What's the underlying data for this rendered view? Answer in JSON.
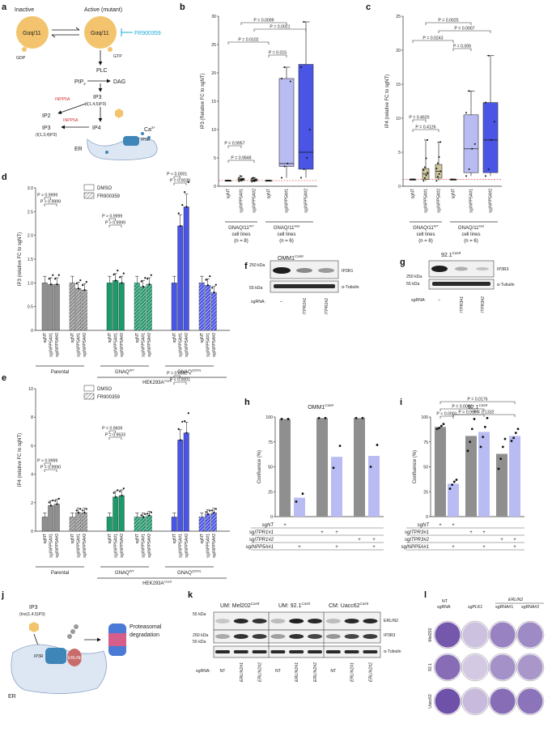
{
  "colors": {
    "grey": "#8f8f8f",
    "green": "#1b9a6a",
    "blue": "#4a55e6",
    "lavender": "#b9bcf2",
    "khaki": "#cfc69a",
    "gold": "#f3c46d",
    "red": "#d32f2f",
    "cyan": "#18a9d8"
  },
  "panel_a": {
    "label": "a",
    "inactive": "Inactive",
    "active": "Active (mutant)",
    "gaq": "Gαq/11",
    "inhibitor": "FR900359",
    "gdp": "GDP",
    "gtp": "GTP",
    "plc": "PLC",
    "pip2": "PIP",
    "pip2_sub": "2",
    "dag": "DAG",
    "ip3_1": "IP3",
    "ip3_1_sub": "(I(1,4,5)P3)",
    "inpp5a_1": "INPP5A",
    "ip2": "IP2",
    "ip3_2": "IP3",
    "ip3_2_sub": "(I(1,3,4)P3)",
    "inpp5a_2": "INPP5A",
    "ip4": "IP4",
    "er": "ER",
    "ip3r": "IP3R",
    "ca": "Ca",
    "ca_sup": "2+"
  },
  "panel_j": {
    "label": "j",
    "ip3": "IP3",
    "ip3_sub": "(Ins(1,4,5)P3)",
    "ip3r": "IP3R",
    "erlin2": "ERLIN2",
    "er": "ER",
    "proteasome": "Proteasomal",
    "degradation": "degradation"
  },
  "panel_b": {
    "label": "b",
    "ylabel": "IP3 (Relative FC to sgNT)",
    "yticks": [
      "0",
      "5",
      "10",
      "15",
      "20",
      "25",
      "30"
    ],
    "cats": [
      "sgNT",
      "sgINPP5A#1",
      "sgINPP5A#2",
      "sgNT",
      "sgINPP5A#1",
      "sgINPP5A#2"
    ],
    "group1": "GNAQ/11",
    "group1_sup": "WT",
    "group1_b": "cell lines",
    "group1_n": "(n = 8)",
    "group2": "GNAQ/11",
    "group2_sup": "Mut",
    "group2_b": "cell lines",
    "group2_n": "(n = 6)",
    "p": [
      "P = 0.0099",
      "P = 0.0021",
      "P = 0.0102",
      "P = 0.015",
      "P = 0.9957",
      "P = 0.9848"
    ]
  },
  "panel_c": {
    "label": "c",
    "ylabel": "IP4 (relative FC to sgNT)",
    "yticks": [
      "0",
      "5",
      "10",
      "15",
      "20",
      "25"
    ],
    "cats": [
      "sgNT",
      "sgINPP5A#1",
      "sgINPP5A#2",
      "sgNT",
      "sgINPP5A#1",
      "sgINPP5A#2"
    ],
    "group1": "GNAQ/11",
    "group1_sup": "WT",
    "group1_b": "cell lines",
    "group1_n": "(n = 8)",
    "group2": "GNAQ/11",
    "group2_sup": "Mut",
    "group2_b": "cell lines",
    "group2_n": "(n = 6)",
    "p": [
      "P = 0.0025",
      "P = 0.0007",
      "P = 0.0243",
      "P = 0.006",
      "P = 0.4620",
      "P = 0.4126"
    ]
  },
  "panel_d": {
    "label": "d",
    "ylabel": "IP3 (relative FC to sgNT)",
    "yticks": [
      "0",
      "0.5",
      "1.0",
      "1.5",
      "2.0",
      "2.5",
      "3.0"
    ],
    "legend": [
      "DMSO",
      "FR900359"
    ],
    "cats": [
      "sgNT",
      "sgINPP5A#1",
      "sgINPP5A#2",
      "sgNT",
      "sgINPP5A#1",
      "sgINPP5A#2"
    ],
    "groups": [
      "Parental",
      "GNAQ",
      "GNAQ"
    ],
    "group_sup": [
      "",
      "WT",
      "Q209L"
    ],
    "cell": "HEK293A",
    "cell_sup": "Cas9",
    "p": [
      "P > 0.9999",
      "P > 0.9999",
      "P > 0.9999",
      "P > 0.9999",
      "P < 0.0001",
      "P = 0.0038"
    ]
  },
  "panel_e": {
    "label": "e",
    "ylabel": "IP4 (relative FC to sgNT)",
    "yticks": [
      "0",
      "2",
      "4",
      "6",
      "8",
      "10"
    ],
    "legend": [
      "DMSO",
      "FR900359"
    ],
    "cats": [
      "sgNT",
      "sgINPP5A#1",
      "sgINPP5A#2",
      "sgNT",
      "sgINPP5A#1",
      "sgINPP5A#2"
    ],
    "groups": [
      "Parental",
      "GNAQ",
      "GNAQ"
    ],
    "group_sup": [
      "",
      "WT",
      "Q209L"
    ],
    "cell": "HEK293A",
    "cell_sup": "Cas9",
    "p": [
      "P > 0.9999",
      "P = 0.9990",
      "P = 0.9609",
      "P = 0.9633",
      "P = 0.0002",
      "P < 0.0001"
    ]
  },
  "panel_f": {
    "label": "f",
    "cell": "OMM1",
    "cell_sup": "Cas9",
    "mw": [
      "250 kDa",
      "55 kDa"
    ],
    "bands": [
      "IP3R1",
      "α-Tubulin"
    ],
    "sgrna": "sgRNA:",
    "lanes": [
      "–",
      "ITPR1#1",
      "ITPR1#2"
    ]
  },
  "panel_g": {
    "label": "g",
    "cell": "92.1",
    "cell_sup": "Cas9",
    "mw": [
      "250 kDa",
      "55 kDa"
    ],
    "bands": [
      "IP3R3",
      "α-Tubulin"
    ],
    "sgrna": "sgRNA:",
    "lanes": [
      "–",
      "ITPR3#1",
      "ITPR3#2"
    ]
  },
  "panel_h": {
    "label": "h",
    "title": "OMM1",
    "title_sup": "Cas9",
    "ylabel": "Confluence (%)",
    "yticks": [
      "0",
      "25",
      "50",
      "75",
      "100"
    ],
    "rows": [
      "sgNT",
      "sgITPR1#1",
      "sgITPR1#2",
      "sgINPP5A#1"
    ],
    "marks": [
      [
        "+",
        "",
        "",
        "",
        "",
        ""
      ],
      [
        "",
        "",
        "+",
        "+",
        "",
        ""
      ],
      [
        "",
        "",
        "",
        "",
        "+",
        "+"
      ],
      [
        "",
        "+",
        "",
        "+",
        "",
        "+"
      ]
    ]
  },
  "panel_i": {
    "label": "i",
    "title": "92.1",
    "title_sup": "Cas9",
    "ylabel": "Confluence (%)",
    "yticks": [
      "0",
      "25",
      "50",
      "75",
      "100"
    ],
    "rows": [
      "sgNT",
      "sgITPR3#1",
      "sgITPR3#2",
      "sgINPP5A#1"
    ],
    "marks": [
      [
        "+",
        "+",
        "",
        "",
        "",
        ""
      ],
      [
        "",
        "",
        "+",
        "+",
        "",
        ""
      ],
      [
        "",
        "",
        "",
        "",
        "+",
        "+"
      ],
      [
        "",
        "+",
        "",
        "+",
        "",
        "+"
      ]
    ],
    "p": [
      "P = 0.0176",
      "P = 0.0002",
      "P < 0.0001",
      "P > 0.9999",
      "P = 0.1332"
    ]
  },
  "panel_k": {
    "label": "k",
    "cells": [
      "UM: Mel202",
      "UM: 92.1",
      "CM: Uacc62"
    ],
    "cell_sup": "Cas9",
    "mw": [
      "55 kDa",
      "250 kDa",
      "55 kDa"
    ],
    "bands": [
      "ERLIN2",
      "IP3R3",
      "α-Tubulin"
    ],
    "sgrna": "sgRNA:",
    "lanes": [
      "NT",
      "ERLIN2#1",
      "ERLIN2#2",
      "NT",
      "ERLIN2#1",
      "ERLIN2#2",
      "NT",
      "ERLIN2#1",
      "ERLIN2#2"
    ]
  },
  "panel_l": {
    "label": "l",
    "cols": [
      "NT",
      "sgPLK1",
      "sgRNA#1",
      "sgRNA#2"
    ],
    "col0b": "sgRNA",
    "erlin": "ERLIN2",
    "rows": [
      "Mel202",
      "92.1",
      "Uacc62"
    ]
  },
  "chart_data": [
    {
      "panel": "b",
      "type": "box",
      "ylabel": "IP3 (Relative FC to sgNT)",
      "ylim": [
        0,
        30
      ],
      "categories": [
        "sgNT",
        "sgINPP5A#1",
        "sgINPP5A#2",
        "sgNT",
        "sgINPP5A#1",
        "sgINPP5A#2"
      ],
      "boxes": [
        {
          "q1": 1,
          "med": 1,
          "q3": 1,
          "min": 1,
          "max": 1
        },
        {
          "q1": 1.0,
          "med": 1.2,
          "q3": 1.4,
          "min": 0.8,
          "max": 1.8
        },
        {
          "q1": 0.9,
          "med": 1.1,
          "q3": 1.3,
          "min": 0.7,
          "max": 1.5
        },
        {
          "q1": 1,
          "med": 1,
          "q3": 1,
          "min": 1,
          "max": 1
        },
        {
          "q1": 3.5,
          "med": 4,
          "q3": 19,
          "min": 1.5,
          "max": 21
        },
        {
          "q1": 3,
          "med": 6,
          "q3": 21.5,
          "min": 1.5,
          "max": 29
        }
      ],
      "points": [
        [
          1,
          1,
          1,
          1,
          1,
          1,
          1,
          1
        ],
        [
          0.9,
          1.1,
          1.2,
          1.3,
          1.5,
          1.8,
          1.0,
          1.2
        ],
        [
          0.8,
          1.0,
          1.1,
          1.2,
          1.4,
          1.5,
          0.9,
          1.1
        ],
        [
          1,
          1,
          1,
          1,
          1,
          1
        ],
        [
          1.5,
          3.5,
          4,
          18.5,
          19,
          21
        ],
        [
          1.5,
          3,
          5,
          10,
          21,
          29
        ]
      ]
    },
    {
      "panel": "c",
      "type": "box",
      "ylabel": "IP4 (relative FC to sgNT)",
      "ylim": [
        0,
        25
      ],
      "categories": [
        "sgNT",
        "sgINPP5A#1",
        "sgINPP5A#2",
        "sgNT",
        "sgINPP5A#1",
        "sgINPP5A#2"
      ],
      "boxes": [
        {
          "q1": 1,
          "med": 1,
          "q3": 1,
          "min": 1,
          "max": 1
        },
        {
          "q1": 1,
          "med": 1.8,
          "q3": 2.6,
          "min": 0.8,
          "max": 6.8
        },
        {
          "q1": 1.2,
          "med": 2.2,
          "q3": 3.2,
          "min": 0.8,
          "max": 6.5
        },
        {
          "q1": 1,
          "med": 1,
          "q3": 1,
          "min": 1,
          "max": 1
        },
        {
          "q1": 2,
          "med": 5.5,
          "q3": 10.5,
          "min": 1.5,
          "max": 14
        },
        {
          "q1": 2,
          "med": 6.8,
          "q3": 12.3,
          "min": 1.5,
          "max": 19.2
        }
      ],
      "points": [
        [
          1,
          1,
          1,
          1,
          1,
          1,
          1,
          1
        ],
        [
          0.8,
          1.2,
          1.6,
          2.0,
          2.4,
          2.8,
          4.1,
          6.8
        ],
        [
          0.8,
          1.4,
          1.8,
          2.2,
          2.6,
          3.4,
          4.3,
          6.5
        ],
        [
          1,
          1,
          1,
          1,
          1,
          1
        ],
        [
          1.5,
          2.5,
          5.5,
          6.2,
          10.8,
          14
        ],
        [
          1.5,
          2.5,
          6.8,
          9.5,
          12.3,
          19.2
        ]
      ]
    },
    {
      "panel": "d",
      "type": "bar",
      "ylabel": "IP3 (relative FC to sgNT)",
      "ylim": [
        0,
        3.0
      ],
      "series": [
        {
          "name": "DMSO",
          "values": [
            1.0,
            0.97,
            0.97,
            1.0,
            1.05,
            1.0,
            1.0,
            2.2,
            2.6
          ]
        },
        {
          "name": "FR900359",
          "values": [
            1.0,
            0.88,
            0.85,
            1.0,
            0.92,
            0.97,
            1.0,
            0.95,
            0.8
          ]
        }
      ]
    },
    {
      "panel": "e",
      "type": "bar",
      "ylabel": "IP4 (relative FC to sgNT)",
      "ylim": [
        0,
        10
      ],
      "series": [
        {
          "name": "DMSO",
          "values": [
            1.0,
            1.8,
            1.9,
            1.0,
            2.4,
            2.5,
            1.0,
            6.4,
            6.9
          ]
        },
        {
          "name": "FR900359",
          "values": [
            1.0,
            1.3,
            1.3,
            1.0,
            1.0,
            1.1,
            1.0,
            1.2,
            1.3
          ]
        }
      ]
    },
    {
      "panel": "h",
      "type": "bar",
      "ylabel": "Confluence (%)",
      "ylim": [
        0,
        100
      ],
      "values": [
        98,
        19,
        99,
        60,
        99,
        61
      ],
      "points": [
        [
          98,
          98
        ],
        [
          15,
          23
        ],
        [
          99,
          99
        ],
        [
          49,
          71
        ],
        [
          99,
          99
        ],
        [
          50,
          72
        ]
      ]
    },
    {
      "panel": "i",
      "type": "bar",
      "ylabel": "Confluence (%)",
      "ylim": [
        0,
        100
      ],
      "values": [
        90,
        33,
        81,
        85,
        63,
        81
      ],
      "points": [
        [
          88,
          89,
          91,
          93
        ],
        [
          28,
          32,
          35,
          37
        ],
        [
          66,
          75,
          88,
          98
        ],
        [
          70,
          80,
          90,
          99
        ],
        [
          48,
          58,
          70,
          78
        ],
        [
          76,
          79,
          84,
          88
        ]
      ]
    }
  ]
}
